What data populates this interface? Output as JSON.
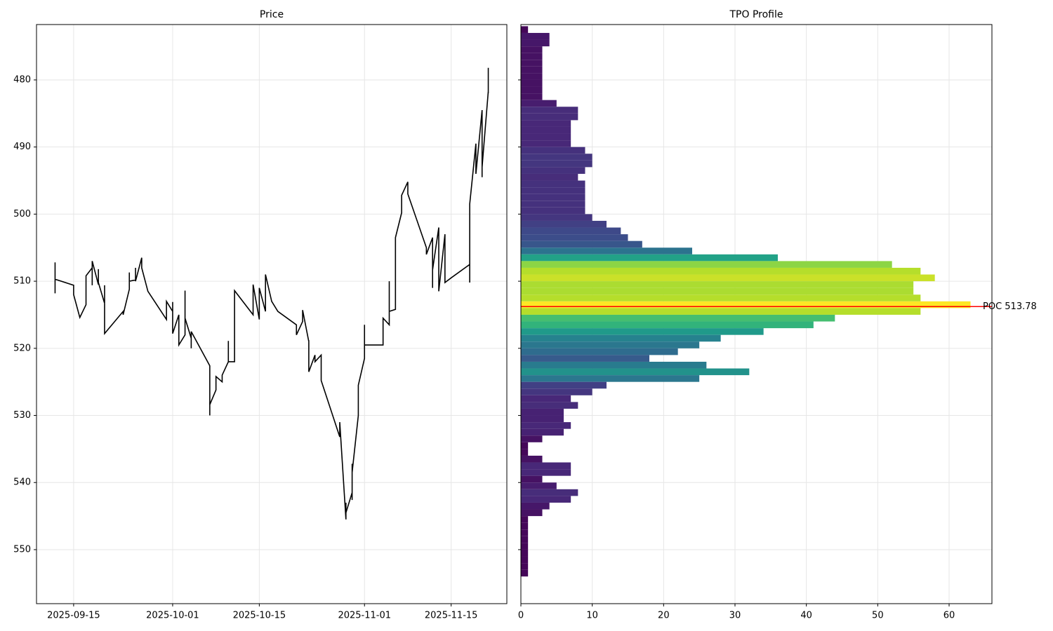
{
  "chart_data": [
    {
      "type": "line",
      "title": "Price",
      "color": "#000000",
      "grid": true,
      "x": [
        "2025-09-12",
        "2025-09-12",
        "2025-09-12",
        "2025-09-15",
        "2025-09-15",
        "2025-09-16",
        "2025-09-17",
        "2025-09-17",
        "2025-09-17",
        "2025-09-18",
        "2025-09-18",
        "2025-09-18",
        "2025-09-19",
        "2025-09-19",
        "2025-09-19",
        "2025-09-20",
        "2025-09-20",
        "2025-09-20",
        "2025-09-23",
        "2025-09-23",
        "2025-09-24",
        "2025-09-24",
        "2025-09-24",
        "2025-09-25",
        "2025-09-25",
        "2025-09-25",
        "2025-09-26",
        "2025-09-26",
        "2025-09-26",
        "2025-09-27",
        "2025-09-30",
        "2025-09-30",
        "2025-10-01",
        "2025-10-01",
        "2025-10-01",
        "2025-10-02",
        "2025-10-02",
        "2025-10-03",
        "2025-10-03",
        "2025-10-03",
        "2025-10-03",
        "2025-10-04",
        "2025-10-04",
        "2025-10-04",
        "2025-10-07",
        "2025-10-07",
        "2025-10-07",
        "2025-10-07",
        "2025-10-08",
        "2025-10-08",
        "2025-10-09",
        "2025-10-09",
        "2025-10-10",
        "2025-10-10",
        "2025-10-10",
        "2025-10-11",
        "2025-10-11",
        "2025-10-14",
        "2025-10-14",
        "2025-10-15",
        "2025-10-15",
        "2025-10-16",
        "2025-10-16",
        "2025-10-16",
        "2025-10-17",
        "2025-10-18",
        "2025-10-21",
        "2025-10-21",
        "2025-10-22",
        "2025-10-22",
        "2025-10-23",
        "2025-10-23",
        "2025-10-23",
        "2025-10-24",
        "2025-10-24",
        "2025-10-25",
        "2025-10-25",
        "2025-10-28",
        "2025-10-28",
        "2025-10-29",
        "2025-10-29",
        "2025-10-29",
        "2025-10-30",
        "2025-10-30",
        "2025-10-30",
        "2025-10-30",
        "2025-10-31",
        "2025-10-31",
        "2025-10-31",
        "2025-11-01",
        "2025-11-01",
        "2025-11-01",
        "2025-11-04",
        "2025-11-04",
        "2025-11-05",
        "2025-11-05",
        "2025-11-05",
        "2025-11-06",
        "2025-11-06",
        "2025-11-06",
        "2025-11-07",
        "2025-11-07",
        "2025-11-08",
        "2025-11-08",
        "2025-11-11",
        "2025-11-11",
        "2025-11-12",
        "2025-11-12",
        "2025-11-12",
        "2025-11-13",
        "2025-11-13",
        "2025-11-13",
        "2025-11-14",
        "2025-11-14",
        "2025-11-14",
        "2025-11-15",
        "2025-11-18",
        "2025-11-18",
        "2025-11-18",
        "2025-11-18",
        "2025-11-19",
        "2025-11-19",
        "2025-11-20",
        "2025-11-20",
        "2025-11-20",
        "2025-11-20",
        "2025-11-20",
        "2025-11-21",
        "2025-11-21",
        "2025-11-21"
      ],
      "values": [
        507.2,
        511.8,
        509.7,
        510.6,
        512,
        515.4,
        513.5,
        512.5,
        509.2,
        508,
        510.6,
        507,
        510.5,
        508.2,
        510.2,
        513.3,
        510.6,
        517.8,
        514.5,
        515,
        511.2,
        508.7,
        510,
        509.8,
        508,
        510,
        506.5,
        507.5,
        508,
        511.5,
        515.7,
        513,
        514.5,
        513.1,
        517.8,
        515,
        519.5,
        518,
        511.4,
        517.5,
        515.5,
        518.5,
        520,
        517.5,
        522.6,
        523.8,
        530,
        528.4,
        526.2,
        524.2,
        525,
        524,
        522,
        518.9,
        522,
        522,
        511.4,
        515,
        510.5,
        515.7,
        511,
        514.5,
        511.1,
        509,
        513,
        514.5,
        516.5,
        518,
        516,
        514.3,
        519,
        518.8,
        523.5,
        521,
        522,
        521,
        524.8,
        533.2,
        531,
        545.5,
        543,
        544.5,
        541.5,
        537.2,
        542.6,
        538.5,
        530,
        527,
        525.5,
        521.5,
        516.5,
        519.5,
        519.5,
        515.5,
        516.5,
        510,
        514.5,
        514.2,
        508.5,
        503.5,
        499.8,
        497.2,
        495.2,
        497,
        505,
        506,
        503.5,
        511,
        508.3,
        502,
        511.3,
        511.5,
        503,
        505.5,
        510.2,
        509.5,
        507.5,
        510.2,
        507,
        498.5,
        489.5,
        494,
        484.5,
        487,
        492.5,
        494.5,
        493,
        481.7,
        482,
        478.2
      ],
      "xlim": [
        "2025-09-09",
        "2025-11-24"
      ],
      "xticks": [
        "2025-09-15",
        "2025-10-01",
        "2025-10-15",
        "2025-11-01",
        "2025-11-15"
      ],
      "ylim": [
        558.05,
        471.75
      ],
      "yticks": [
        480,
        490,
        500,
        510,
        520,
        530,
        540,
        550
      ]
    },
    {
      "type": "histogram",
      "orientation": "horizontal",
      "title": "TPO Profile",
      "colormap": "viridis",
      "grid": true,
      "bins": [
        472,
        473,
        474,
        475,
        476,
        477,
        478,
        479,
        480,
        481,
        482,
        483,
        484,
        485,
        486,
        487,
        488,
        489,
        490,
        491,
        492,
        493,
        494,
        495,
        496,
        497,
        498,
        499,
        500,
        501,
        502,
        503,
        504,
        505,
        506,
        507,
        508,
        509,
        510,
        511,
        512,
        513,
        514,
        515,
        516,
        517,
        518,
        519,
        520,
        521,
        522,
        523,
        524,
        525,
        526,
        527,
        528,
        529,
        530,
        531,
        532,
        533,
        534,
        535,
        536,
        537,
        538,
        539,
        540,
        541,
        542,
        543,
        544,
        545,
        546,
        547,
        548,
        549,
        550,
        551,
        552,
        553,
        554
      ],
      "values": [
        1,
        4,
        4,
        3,
        3,
        3,
        3,
        3,
        3,
        3,
        3,
        5,
        8,
        8,
        7,
        7,
        7,
        7,
        9,
        10,
        10,
        9,
        8,
        9,
        9,
        9,
        9,
        9,
        10,
        12,
        14,
        15,
        17,
        24,
        36,
        52,
        56,
        58,
        55,
        55,
        56,
        63,
        56,
        44,
        41,
        34,
        28,
        25,
        22,
        18,
        26,
        32,
        25,
        12,
        10,
        7,
        8,
        6,
        6,
        7,
        6,
        3,
        1,
        1,
        3,
        7,
        7,
        3,
        5,
        8,
        7,
        4,
        3,
        1,
        1,
        1,
        1,
        1,
        1,
        1,
        1,
        1
      ],
      "xlim": [
        0,
        66
      ],
      "xticks": [
        0,
        10,
        20,
        30,
        40,
        50,
        60
      ],
      "ylim": [
        558.05,
        471.75
      ],
      "yticks": [
        480,
        490,
        500,
        510,
        520,
        530,
        540,
        550
      ],
      "poc": {
        "value": 513.78,
        "label": "POC 513.78",
        "color": "#ff0000"
      }
    }
  ]
}
